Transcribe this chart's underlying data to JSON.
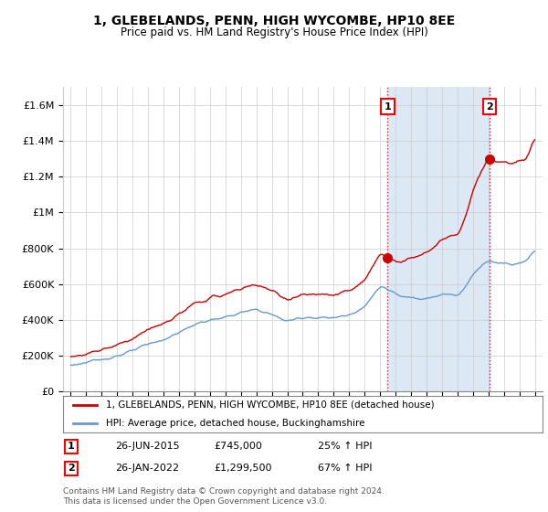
{
  "title": "1, GLEBELANDS, PENN, HIGH WYCOMBE, HP10 8EE",
  "subtitle": "Price paid vs. HM Land Registry's House Price Index (HPI)",
  "legend_line1": "1, GLEBELANDS, PENN, HIGH WYCOMBE, HP10 8EE (detached house)",
  "legend_line2": "HPI: Average price, detached house, Buckinghamshire",
  "sale1_label": "1",
  "sale1_date": "26-JUN-2015",
  "sale1_price": "£745,000",
  "sale1_hpi": "25% ↑ HPI",
  "sale1_x": 2015.49,
  "sale1_y": 745000,
  "sale2_label": "2",
  "sale2_date": "26-JAN-2022",
  "sale2_price": "£1,299,500",
  "sale2_hpi": "67% ↑ HPI",
  "sale2_x": 2022.07,
  "sale2_y": 1299500,
  "red_color": "#cc0000",
  "blue_color": "#6699cc",
  "blue_fill": "#dce9f5",
  "background_color": "#ffffff",
  "grid_color": "#cccccc",
  "footer": "Contains HM Land Registry data © Crown copyright and database right 2024.\nThis data is licensed under the Open Government Licence v3.0.",
  "ylim": [
    0,
    1700000
  ],
  "xlim": [
    1994.5,
    2025.5
  ],
  "yticks": [
    0,
    200000,
    400000,
    600000,
    800000,
    1000000,
    1200000,
    1400000,
    1600000
  ],
  "ytick_labels": [
    "£0",
    "£200K",
    "£400K",
    "£600K",
    "£800K",
    "£1M",
    "£1.2M",
    "£1.4M",
    "£1.6M"
  ]
}
